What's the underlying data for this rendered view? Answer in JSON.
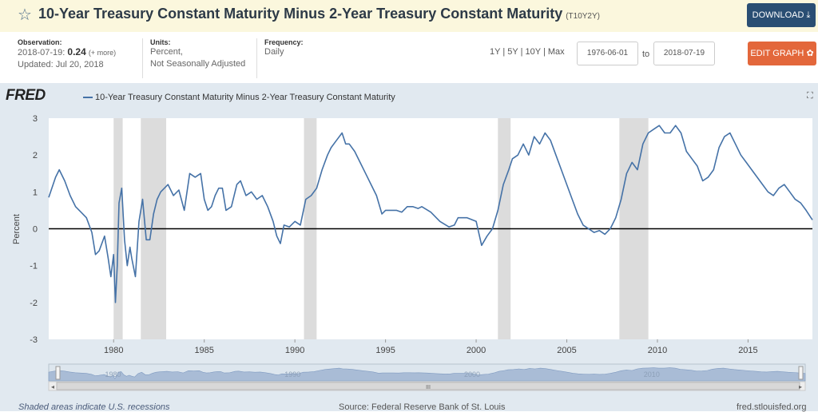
{
  "header": {
    "title": "10-Year Treasury Constant Maturity Minus 2-Year Treasury Constant Maturity",
    "series_id": "(T10Y2Y)",
    "download_label": "DOWNLOAD",
    "star_icon": "star-icon",
    "download_icon": "download-icon"
  },
  "meta": {
    "observation_label": "Observation:",
    "observation_date": "2018-07-19:",
    "observation_value": "0.24",
    "observation_more": "(+ more)",
    "updated": "Updated: Jul 20, 2018",
    "units_label": "Units:",
    "units_line1": "Percent,",
    "units_line2": "Not Seasonally Adjusted",
    "frequency_label": "Frequency:",
    "frequency_value": "Daily"
  },
  "controls": {
    "range_1y": "1Y",
    "range_5y": "5Y",
    "range_10y": "10Y",
    "range_max": "Max",
    "sep": "|",
    "start_date": "1976-06-01",
    "to_label": "to",
    "end_date": "2018-07-19",
    "edit_label": "EDIT GRAPH",
    "edit_icon": "gear-icon"
  },
  "panel": {
    "logo": "FRED",
    "legend": "10-Year Treasury Constant Maturity Minus 2-Year Treasury Constant Maturity",
    "expand_icon": "expand-icon",
    "recession_note": "Shaded areas indicate U.S. recessions",
    "source": "Source: Federal Reserve Bank of St. Louis",
    "url": "fred.stlouisfed.org",
    "navigator_labels": [
      "1980",
      "1990",
      "2000",
      "2010"
    ],
    "scrollbar_grip": "III"
  },
  "colors": {
    "line": "#4572a7",
    "recession": "#dcdcdc",
    "zero_line": "#000000",
    "download_button": "#2a4e73",
    "edit_button": "#e3673b",
    "header_bg": "#fbf7dd",
    "panel_bg": "#e1e9f0"
  },
  "chart_data": {
    "type": "line",
    "title": "10-Year Treasury Constant Maturity Minus 2-Year Treasury Constant Maturity",
    "xlabel": "",
    "ylabel": "Percent",
    "ylim": [
      -3,
      3
    ],
    "xlim": [
      1976.42,
      2018.55
    ],
    "y_ticks": [
      "3",
      "2",
      "1",
      "0",
      "-1",
      "-2",
      "-3"
    ],
    "x_ticks": [
      "1980",
      "1985",
      "1990",
      "1995",
      "2000",
      "2005",
      "2010",
      "2015"
    ],
    "recessions": [
      [
        1980.0,
        1980.5
      ],
      [
        1981.5,
        1982.9
      ],
      [
        1990.5,
        1991.2
      ],
      [
        2001.2,
        2001.9
      ],
      [
        2007.9,
        2009.5
      ]
    ],
    "series": [
      {
        "name": "10-Year Treasury Constant Maturity Minus 2-Year Treasury Constant Maturity",
        "x": [
          1976.42,
          1976.8,
          1977.0,
          1977.3,
          1977.6,
          1977.9,
          1978.2,
          1978.5,
          1978.8,
          1979.0,
          1979.2,
          1979.5,
          1979.7,
          1979.85,
          1980.0,
          1980.1,
          1980.2,
          1980.3,
          1980.45,
          1980.6,
          1980.75,
          1980.9,
          1981.0,
          1981.2,
          1981.4,
          1981.6,
          1981.8,
          1982.0,
          1982.2,
          1982.4,
          1982.6,
          1982.8,
          1983.0,
          1983.3,
          1983.6,
          1983.9,
          1984.2,
          1984.5,
          1984.8,
          1985.0,
          1985.2,
          1985.4,
          1985.6,
          1985.8,
          1986.0,
          1986.2,
          1986.5,
          1986.8,
          1987.0,
          1987.3,
          1987.6,
          1987.9,
          1988.2,
          1988.5,
          1988.8,
          1989.0,
          1989.2,
          1989.4,
          1989.7,
          1990.0,
          1990.3,
          1990.6,
          1990.9,
          1991.2,
          1991.5,
          1991.8,
          1992.0,
          1992.3,
          1992.6,
          1992.8,
          1993.0,
          1993.3,
          1993.6,
          1993.9,
          1994.2,
          1994.5,
          1994.8,
          1995.0,
          1995.3,
          1995.6,
          1995.9,
          1996.2,
          1996.5,
          1996.8,
          1997.0,
          1997.5,
          1998.0,
          1998.5,
          1998.8,
          1999.0,
          1999.5,
          2000.0,
          2000.3,
          2000.6,
          2000.9,
          2001.2,
          2001.5,
          2001.8,
          2002.0,
          2002.3,
          2002.6,
          2002.9,
          2003.2,
          2003.5,
          2003.8,
          2004.1,
          2004.4,
          2004.7,
          2005.0,
          2005.3,
          2005.6,
          2005.9,
          2006.2,
          2006.5,
          2006.8,
          2007.1,
          2007.4,
          2007.7,
          2008.0,
          2008.3,
          2008.6,
          2008.9,
          2009.2,
          2009.5,
          2009.8,
          2010.1,
          2010.4,
          2010.7,
          2011.0,
          2011.3,
          2011.6,
          2011.9,
          2012.2,
          2012.5,
          2012.8,
          2013.1,
          2013.4,
          2013.7,
          2014.0,
          2014.3,
          2014.6,
          2014.9,
          2015.2,
          2015.5,
          2015.8,
          2016.1,
          2016.4,
          2016.7,
          2017.0,
          2017.3,
          2017.6,
          2017.9,
          2018.2,
          2018.55
        ],
        "values": [
          0.85,
          1.4,
          1.6,
          1.3,
          0.9,
          0.6,
          0.45,
          0.3,
          -0.1,
          -0.7,
          -0.6,
          -0.2,
          -0.8,
          -1.3,
          -0.7,
          -2.0,
          -1.0,
          0.7,
          1.1,
          -0.3,
          -1.0,
          -0.5,
          -0.8,
          -1.3,
          0.2,
          0.8,
          -0.3,
          -0.3,
          0.4,
          0.8,
          1.0,
          1.1,
          1.2,
          0.9,
          1.05,
          0.5,
          1.5,
          1.4,
          1.5,
          0.8,
          0.5,
          0.6,
          0.9,
          1.1,
          1.1,
          0.5,
          0.6,
          1.2,
          1.3,
          0.9,
          1.0,
          0.8,
          0.9,
          0.6,
          0.2,
          -0.2,
          -0.4,
          0.1,
          0.05,
          0.2,
          0.1,
          0.8,
          0.9,
          1.1,
          1.6,
          2.0,
          2.2,
          2.4,
          2.6,
          2.3,
          2.3,
          2.1,
          1.8,
          1.5,
          1.2,
          0.9,
          0.4,
          0.5,
          0.5,
          0.5,
          0.45,
          0.6,
          0.6,
          0.55,
          0.6,
          0.45,
          0.2,
          0.05,
          0.1,
          0.3,
          0.3,
          0.2,
          -0.45,
          -0.2,
          0.0,
          0.5,
          1.2,
          1.6,
          1.9,
          2.0,
          2.3,
          2.0,
          2.5,
          2.3,
          2.6,
          2.4,
          2.0,
          1.6,
          1.2,
          0.8,
          0.4,
          0.1,
          0.0,
          -0.1,
          -0.05,
          -0.15,
          0.0,
          0.3,
          0.8,
          1.5,
          1.8,
          1.6,
          2.3,
          2.6,
          2.7,
          2.8,
          2.6,
          2.6,
          2.8,
          2.6,
          2.1,
          1.9,
          1.7,
          1.3,
          1.4,
          1.6,
          2.2,
          2.5,
          2.6,
          2.3,
          2.0,
          1.8,
          1.6,
          1.4,
          1.2,
          1.0,
          0.9,
          1.1,
          1.2,
          1.0,
          0.8,
          0.7,
          0.5,
          0.24
        ]
      }
    ]
  }
}
